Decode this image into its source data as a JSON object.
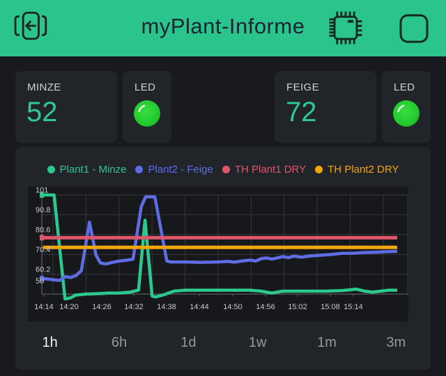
{
  "header": {
    "title": "myPlant-Informe",
    "bg_color": "#2bc48d",
    "icon_color": "#172821"
  },
  "widgets": {
    "minze": {
      "label": "MINZE",
      "value": "52"
    },
    "led1": {
      "label": "LED",
      "state": "on"
    },
    "feige": {
      "label": "FEIGE",
      "value": "72"
    },
    "led2": {
      "label": "LED",
      "state": "on"
    }
  },
  "theme": {
    "page_bg": "#191a1f",
    "card_bg": "#212429",
    "plot_bg": "#17181c",
    "value_accent": "#2dc998",
    "led_on_color": "#28cd31",
    "grid_color": "#34373d",
    "axis_color": "#5d6067",
    "tick_text_color": "#c6c9cd"
  },
  "chart_data": {
    "type": "line",
    "title": "",
    "xlabel": "",
    "ylabel": "",
    "grid": true,
    "legend_position": "top",
    "x_unit": "minutes since 14:14",
    "x_range": [
      0,
      65
    ],
    "y_axis": {
      "min": 50,
      "max": 101,
      "tick_values": [
        101,
        90.8,
        80.6,
        70.4,
        60.2,
        50
      ],
      "tick_labels": [
        "101",
        "90.8",
        "80.6",
        "70.4",
        "60.2",
        "50"
      ]
    },
    "x_axis": {
      "tick_labels": [
        "14:14",
        "14:20",
        "14:26",
        "14:32",
        "14:38",
        "14:44",
        "14:50",
        "14:56",
        "15:02",
        "15:08",
        "15:14"
      ],
      "tick_x": [
        23,
        59,
        106,
        152,
        199,
        246,
        294,
        341,
        387,
        434,
        467
      ]
    },
    "series": [
      {
        "name": "Plant1 - Minze",
        "color": "#2bc98e",
        "stroke_width": 4.5,
        "start_marker": true,
        "points": [
          [
            0,
            101
          ],
          [
            2,
            101
          ],
          [
            4,
            47.5
          ],
          [
            5,
            48
          ],
          [
            6,
            49.5
          ],
          [
            8,
            50
          ],
          [
            10,
            50.2
          ],
          [
            12,
            50.5
          ],
          [
            14,
            50.5
          ],
          [
            16,
            51
          ],
          [
            17.5,
            52
          ],
          [
            18.7,
            88
          ],
          [
            20,
            49
          ],
          [
            20.6,
            48.5
          ],
          [
            22,
            49.5
          ],
          [
            24,
            51.5
          ],
          [
            26,
            52
          ],
          [
            30,
            52
          ],
          [
            34,
            52
          ],
          [
            38,
            52
          ],
          [
            40,
            51.5
          ],
          [
            42,
            50.5
          ],
          [
            43,
            51
          ],
          [
            44,
            51.5
          ],
          [
            48,
            51.5
          ],
          [
            52,
            51.5
          ],
          [
            55,
            51.8
          ],
          [
            57.5,
            52.5
          ],
          [
            59,
            51.5
          ],
          [
            60.5,
            51
          ],
          [
            62,
            51.5
          ],
          [
            63.5,
            52
          ],
          [
            65,
            52
          ]
        ]
      },
      {
        "name": "Plant2 - Feige",
        "color": "#5e6de4",
        "stroke_width": 4.5,
        "start_marker": true,
        "points": [
          [
            0,
            58
          ],
          [
            1.5,
            57.5
          ],
          [
            3,
            57
          ],
          [
            4,
            59
          ],
          [
            5,
            58.5
          ],
          [
            6,
            59.5
          ],
          [
            7,
            62
          ],
          [
            8.5,
            87
          ],
          [
            9.7,
            70
          ],
          [
            10.5,
            66
          ],
          [
            11.5,
            65.5
          ],
          [
            13,
            66.5
          ],
          [
            14,
            67
          ],
          [
            15.5,
            67.5
          ],
          [
            16.5,
            68
          ],
          [
            18,
            95
          ],
          [
            18.8,
            100
          ],
          [
            20.5,
            100
          ],
          [
            21.7,
            82
          ],
          [
            22.7,
            67
          ],
          [
            23.5,
            66.5
          ],
          [
            26,
            66.5
          ],
          [
            29,
            66.3
          ],
          [
            32,
            66.5
          ],
          [
            34,
            66.8
          ],
          [
            35,
            66.4
          ],
          [
            36.5,
            67
          ],
          [
            38,
            67.5
          ],
          [
            39,
            67
          ],
          [
            40,
            68.2
          ],
          [
            41,
            68.6
          ],
          [
            42,
            68
          ],
          [
            43,
            68.6
          ],
          [
            44,
            69.3
          ],
          [
            45,
            68.7
          ],
          [
            46,
            69.5
          ],
          [
            47.5,
            69
          ],
          [
            49,
            69.6
          ],
          [
            51,
            70
          ],
          [
            53,
            70.4
          ],
          [
            55,
            71
          ],
          [
            57,
            71
          ],
          [
            59,
            71.4
          ],
          [
            61,
            71.5
          ],
          [
            63,
            71.8
          ],
          [
            65,
            72
          ]
        ]
      },
      {
        "name": "TH Plant1 DRY",
        "color": "#e0556a",
        "stroke_width": 5,
        "start_marker": true,
        "points": [
          [
            0,
            79
          ],
          [
            65,
            79
          ]
        ]
      },
      {
        "name": "TH Plant2 DRY",
        "color": "#f2a60b",
        "stroke_width": 5,
        "start_marker": false,
        "points": [
          [
            0,
            74
          ],
          [
            65,
            74
          ]
        ]
      }
    ]
  },
  "tabs": {
    "items": [
      {
        "label": "1h",
        "active": true
      },
      {
        "label": "6h",
        "active": false
      },
      {
        "label": "1d",
        "active": false
      },
      {
        "label": "1w",
        "active": false
      },
      {
        "label": "1m",
        "active": false
      },
      {
        "label": "3m",
        "active": false
      }
    ]
  }
}
